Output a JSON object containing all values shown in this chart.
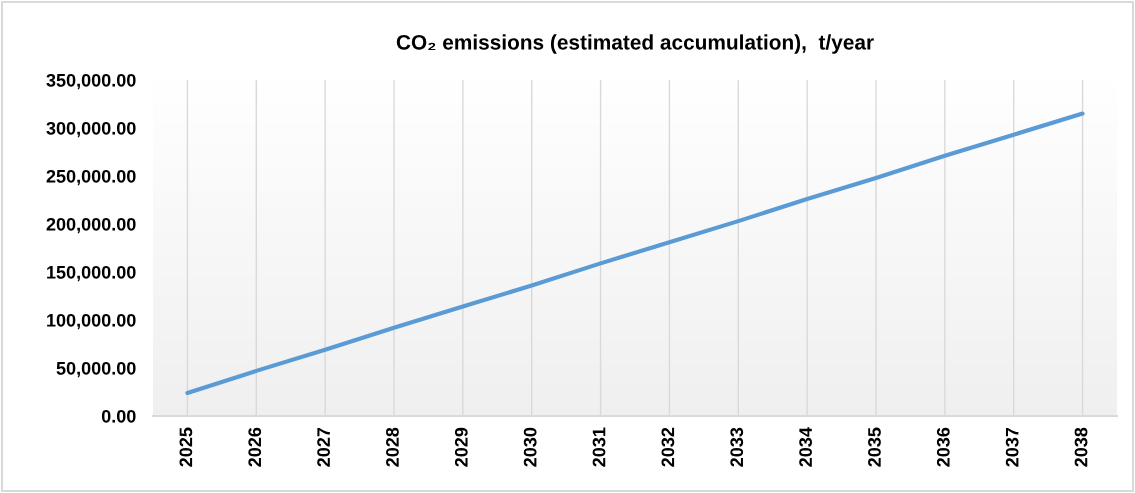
{
  "chart_data": {
    "type": "line",
    "title": "CO₂ emissions (estimated accumulation),  t/year",
    "categories": [
      "2025",
      "2026",
      "2027",
      "2028",
      "2029",
      "2030",
      "2031",
      "2032",
      "2033",
      "2034",
      "2035",
      "2036",
      "2037",
      "2038"
    ],
    "series": [
      {
        "color": "#5b9bd5",
        "values": [
          24000,
          47000,
          69000,
          92000,
          114000,
          136000,
          159000,
          181000,
          203000,
          226000,
          248000,
          271000,
          293000,
          315000
        ]
      }
    ],
    "ylim": [
      0,
      350000
    ],
    "yticks": [
      {
        "value": 0,
        "label": "0.00"
      },
      {
        "value": 50000,
        "label": "50,000.00"
      },
      {
        "value": 100000,
        "label": "100,000.00"
      },
      {
        "value": 150000,
        "label": "150,000.00"
      },
      {
        "value": 200000,
        "label": "200,000.00"
      },
      {
        "value": 250000,
        "label": "250,000.00"
      },
      {
        "value": 300000,
        "label": "300,000.00"
      },
      {
        "value": 350000,
        "label": "350,000.00"
      }
    ],
    "grid": "x",
    "marker": "none",
    "line_style": "solid"
  }
}
